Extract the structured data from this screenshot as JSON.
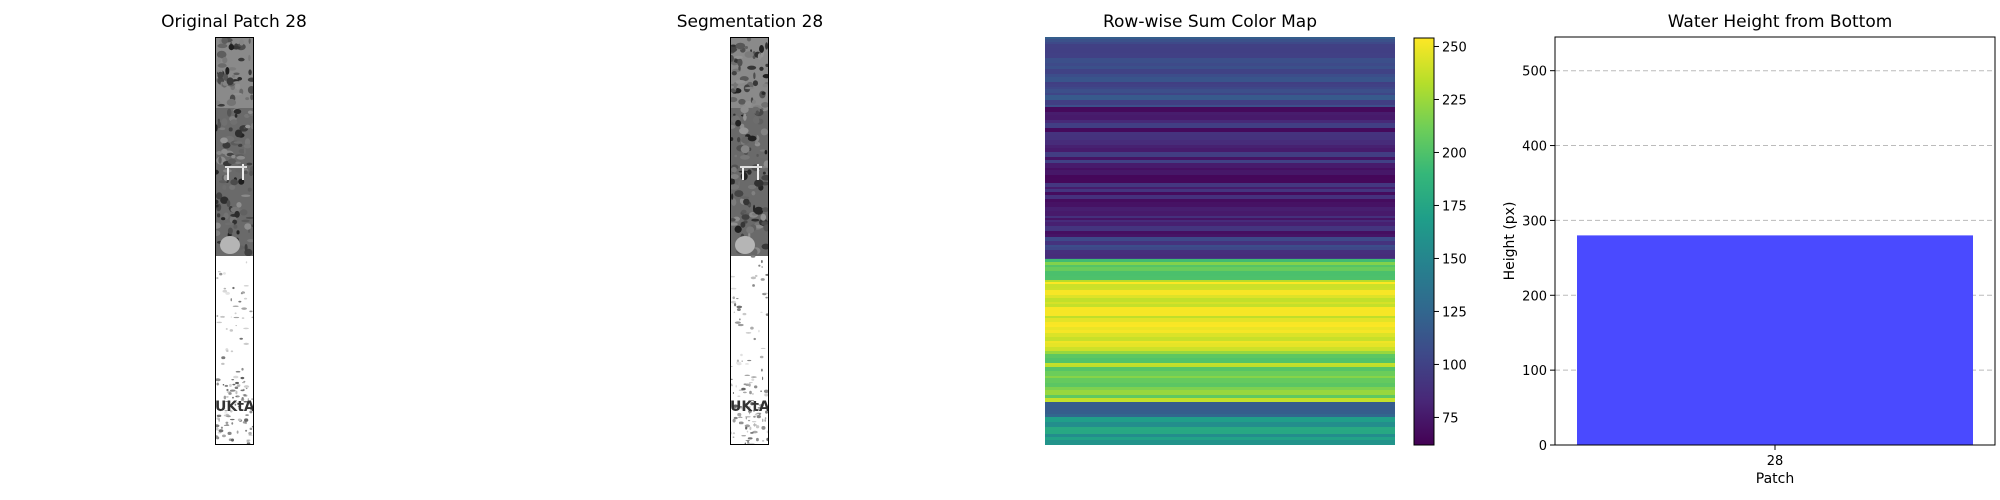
{
  "panels": {
    "original_title": "Original Patch 28",
    "segmentation_title": "Segmentation 28",
    "colormap_title": "Row-wise Sum Color Map",
    "barchart_title": "Water Height from Bottom"
  },
  "strip_overlay_text": "UKtAY",
  "colorbar": {
    "colormap": "viridis",
    "min": 62,
    "max": 254,
    "ticks": [
      "75",
      "100",
      "125",
      "150",
      "175",
      "200",
      "225",
      "250"
    ]
  },
  "colors": {
    "bar": "#4a4aff",
    "grid": "#bbbbbb",
    "viridis": [
      "#440154",
      "#482878",
      "#3e4989",
      "#31688e",
      "#26828e",
      "#1f9e89",
      "#35b779",
      "#6ece58",
      "#b5de2b",
      "#fde725"
    ]
  },
  "chart_data": {
    "type": "bar",
    "title": "Water Height from Bottom",
    "categories": [
      "28"
    ],
    "values": [
      280
    ],
    "xlabel": "Patch",
    "ylabel": "Height (px)",
    "ylim": [
      0,
      545
    ],
    "yticks": [
      "0",
      "100",
      "200",
      "300",
      "400",
      "500"
    ],
    "grid": "y-dashed"
  }
}
